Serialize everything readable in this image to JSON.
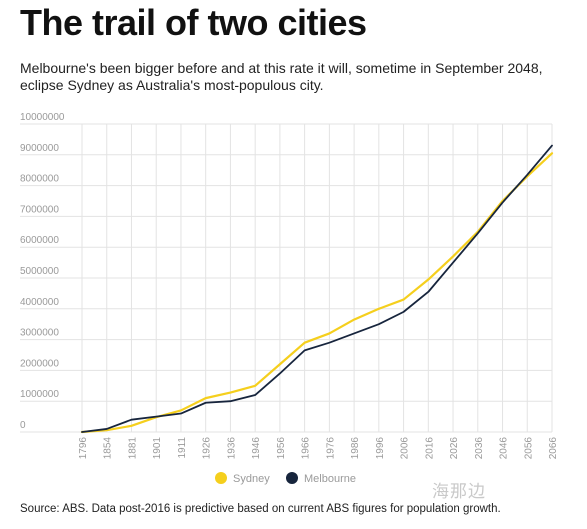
{
  "header": {
    "title": "The trail of two cities",
    "subtitle": "Melbourne's been bigger before and at this rate it will, sometime in September 2048, eclipse Sydney as Australia's most-populous city."
  },
  "footer": {
    "source": "Source: ABS. Data post-2016 is predictive based on current ABS figures for population growth.",
    "watermark": "海那边"
  },
  "colors": {
    "sydney": "#f5cf1d",
    "melbourne": "#17253d",
    "grid": "#e3e3e3",
    "tick": "#9a9a9a"
  },
  "chart_data": {
    "type": "line",
    "title": "",
    "xlabel": "",
    "ylabel": "",
    "x_tick_labels": [
      "1796",
      "1854",
      "1881",
      "1901",
      "1911",
      "1926",
      "1936",
      "1946",
      "1956",
      "1966",
      "1976",
      "1986",
      "1996",
      "2006",
      "2016",
      "2026",
      "2036",
      "2046",
      "2056",
      "2066"
    ],
    "y_tick_labels": [
      "0",
      "1000000",
      "2000000",
      "3000000",
      "4000000",
      "5000000",
      "6000000",
      "7000000",
      "8000000",
      "9000000",
      "10000000"
    ],
    "ylim": [
      0,
      10000000
    ],
    "grid": true,
    "legend_position": "bottom-center",
    "series": [
      {
        "name": "Sydney",
        "color": "#f5cf1d",
        "values": [
          0,
          60000,
          200000,
          480000,
          700000,
          1100000,
          1280000,
          1500000,
          2200000,
          2900000,
          3200000,
          3650000,
          4000000,
          4300000,
          4950000,
          5700000,
          6500000,
          7500000,
          8300000,
          9050000
        ]
      },
      {
        "name": "Melbourne",
        "color": "#17253d",
        "values": [
          0,
          100000,
          400000,
          500000,
          600000,
          950000,
          1000000,
          1200000,
          1900000,
          2650000,
          2900000,
          3200000,
          3500000,
          3900000,
          4550000,
          5500000,
          6450000,
          7450000,
          8350000,
          9300000
        ]
      }
    ]
  }
}
